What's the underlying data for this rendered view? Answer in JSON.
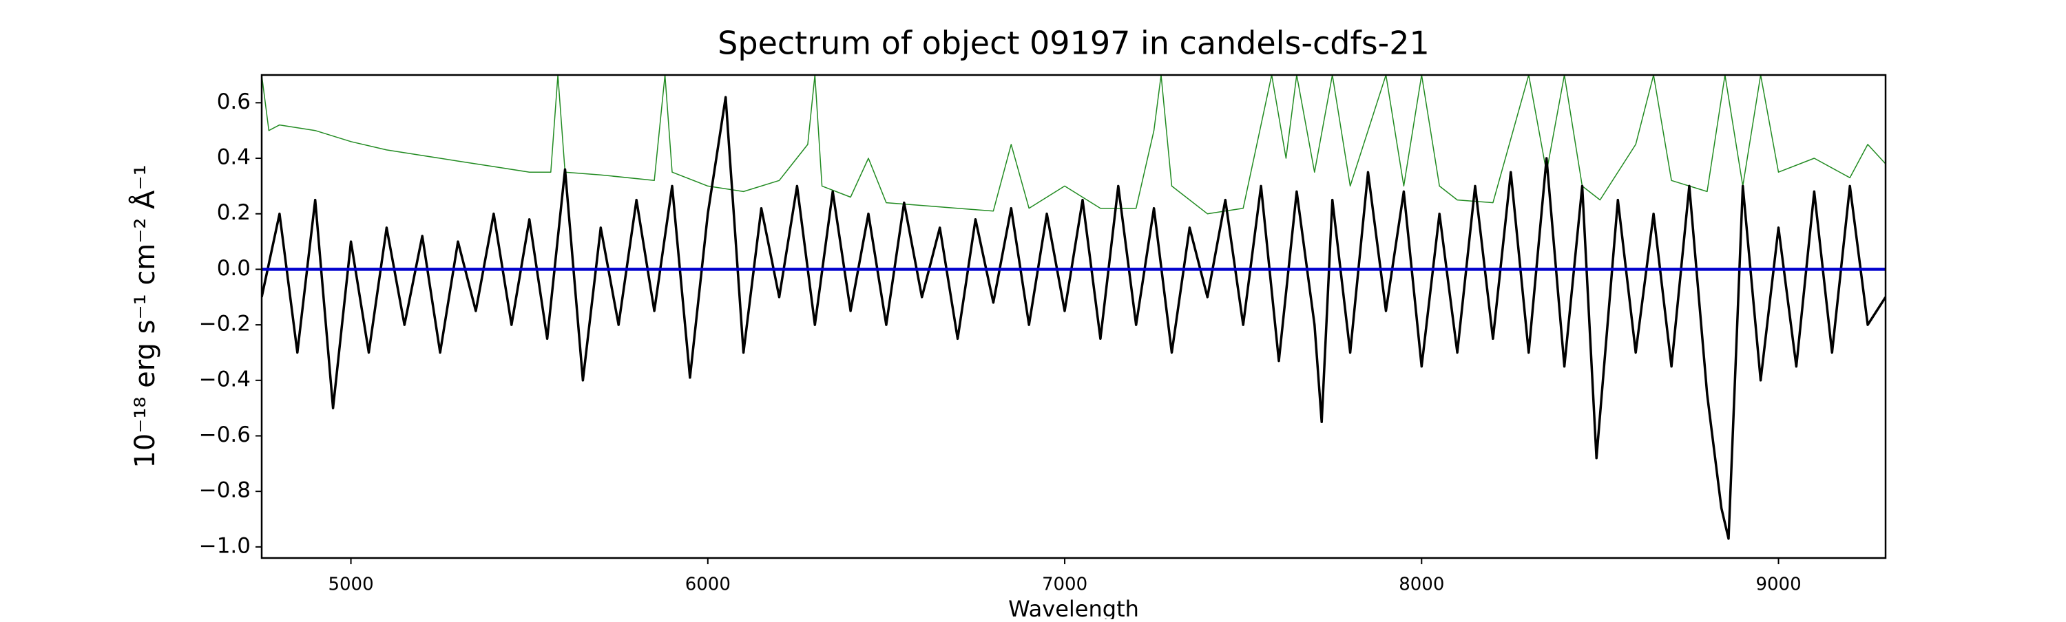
{
  "chart_data": {
    "type": "line",
    "title": "Spectrum of object 09197 in candels-cdfs-21",
    "x_label": "Wavelength",
    "y_label": "10⁻¹⁸ erg s⁻¹ cm⁻² Å⁻¹",
    "xlim": [
      4750,
      9300
    ],
    "ylim": [
      -1.04,
      0.7
    ],
    "xticks": [
      5000,
      6000,
      7000,
      8000,
      9000
    ],
    "yticks": [
      0.6,
      0.4,
      0.2,
      {
        "value": 0,
        "label": "0.0"
      },
      {
        "value": -0.2,
        "label": "−0.2"
      },
      {
        "value": -0.4,
        "label": "−0.4"
      },
      {
        "value": -0.6,
        "label": "−0.6"
      },
      {
        "value": -0.8,
        "label": "−0.8"
      },
      {
        "value": -1.0,
        "label": "−1.0"
      }
    ],
    "grid": false,
    "series": [
      {
        "color": "#000000",
        "width": 3.5,
        "x": [
          4750,
          4800,
          4850,
          4900,
          4950,
          5000,
          5050,
          5100,
          5150,
          5200,
          5250,
          5300,
          5350,
          5400,
          5450,
          5500,
          5550,
          5600,
          5650,
          5700,
          5750,
          5800,
          5850,
          5900,
          5950,
          6000,
          6050,
          6100,
          6150,
          6200,
          6250,
          6300,
          6350,
          6400,
          6450,
          6500,
          6550,
          6600,
          6650,
          6700,
          6750,
          6800,
          6850,
          6900,
          6950,
          7000,
          7050,
          7100,
          7150,
          7200,
          7250,
          7300,
          7350,
          7400,
          7450,
          7500,
          7550,
          7600,
          7650,
          7700,
          7720,
          7750,
          7800,
          7850,
          7900,
          7950,
          8000,
          8050,
          8100,
          8150,
          8200,
          8250,
          8300,
          8350,
          8400,
          8450,
          8490,
          8550,
          8600,
          8650,
          8700,
          8750,
          8800,
          8840,
          8860,
          8900,
          8950,
          9000,
          9050,
          9100,
          9150,
          9200,
          9250,
          9300
        ],
        "values": [
          -0.1,
          0.2,
          -0.3,
          0.25,
          -0.5,
          0.1,
          -0.3,
          0.15,
          -0.2,
          0.12,
          -0.3,
          0.1,
          -0.15,
          0.2,
          -0.2,
          0.18,
          -0.25,
          0.36,
          -0.4,
          0.15,
          -0.2,
          0.25,
          -0.15,
          0.3,
          -0.39,
          0.2,
          0.62,
          -0.3,
          0.22,
          -0.1,
          0.3,
          -0.2,
          0.28,
          -0.15,
          0.2,
          -0.2,
          0.24,
          -0.1,
          0.15,
          -0.25,
          0.18,
          -0.12,
          0.22,
          -0.2,
          0.2,
          -0.15,
          0.25,
          -0.25,
          0.3,
          -0.2,
          0.22,
          -0.3,
          0.15,
          -0.1,
          0.25,
          -0.2,
          0.3,
          -0.33,
          0.28,
          -0.2,
          -0.55,
          0.25,
          -0.3,
          0.35,
          -0.15,
          0.28,
          -0.35,
          0.2,
          -0.3,
          0.3,
          -0.25,
          0.35,
          -0.3,
          0.4,
          -0.35,
          0.3,
          -0.68,
          0.25,
          -0.3,
          0.2,
          -0.35,
          0.3,
          -0.45,
          -0.86,
          -0.97,
          0.3,
          -0.4,
          0.15,
          -0.35,
          0.28,
          -0.3,
          0.3,
          -0.2,
          -0.1
        ]
      },
      {
        "color": "#228b22",
        "width": 1.5,
        "x": [
          4750,
          4770,
          4800,
          4900,
          5000,
          5100,
          5200,
          5300,
          5400,
          5500,
          5560,
          5580,
          5600,
          5700,
          5850,
          5880,
          5900,
          6000,
          6100,
          6200,
          6280,
          6300,
          6320,
          6400,
          6450,
          6500,
          6600,
          6700,
          6800,
          6850,
          6900,
          7000,
          7100,
          7200,
          7250,
          7270,
          7300,
          7400,
          7500,
          7580,
          7620,
          7650,
          7700,
          7750,
          7800,
          7900,
          7950,
          8000,
          8050,
          8100,
          8200,
          8300,
          8350,
          8400,
          8450,
          8500,
          8600,
          8650,
          8700,
          8800,
          8850,
          8900,
          8950,
          9000,
          9100,
          9200,
          9250,
          9300
        ],
        "values": [
          0.7,
          0.5,
          0.52,
          0.5,
          0.46,
          0.43,
          0.41,
          0.39,
          0.37,
          0.35,
          0.35,
          0.7,
          0.35,
          0.34,
          0.32,
          0.7,
          0.35,
          0.3,
          0.28,
          0.32,
          0.45,
          0.7,
          0.3,
          0.26,
          0.4,
          0.24,
          0.23,
          0.22,
          0.21,
          0.45,
          0.22,
          0.3,
          0.22,
          0.22,
          0.5,
          0.7,
          0.3,
          0.2,
          0.22,
          0.7,
          0.4,
          0.7,
          0.35,
          0.7,
          0.3,
          0.7,
          0.3,
          0.7,
          0.3,
          0.25,
          0.24,
          0.7,
          0.35,
          0.7,
          0.3,
          0.25,
          0.45,
          0.7,
          0.32,
          0.28,
          0.7,
          0.3,
          0.7,
          0.35,
          0.4,
          0.33,
          0.45,
          0.38
        ]
      },
      {
        "color": "#0000cd",
        "width": 4.5,
        "x": [
          4750,
          9300
        ],
        "values": [
          0,
          0
        ]
      }
    ]
  }
}
